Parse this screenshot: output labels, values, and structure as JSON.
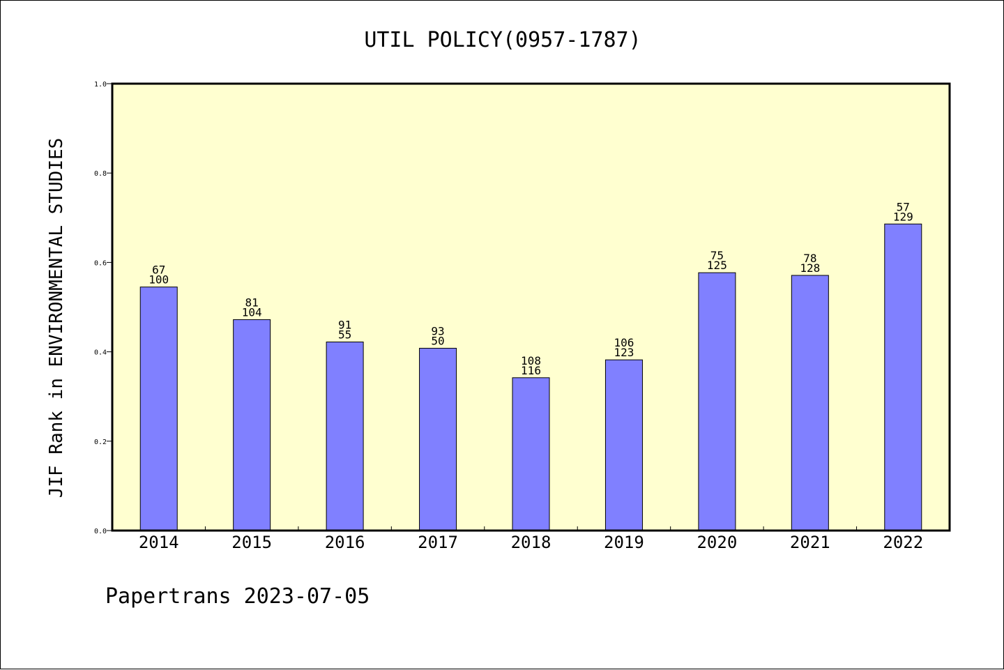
{
  "chart_data": {
    "type": "bar",
    "title": "UTIL POLICY(0957-1787)",
    "ylabel": "JIF Rank in ENVIRONMENTAL STUDIES",
    "xlabel": "",
    "ylim": [
      0,
      1.0
    ],
    "yticks": [
      "0.0",
      "0.2",
      "0.4",
      "0.6",
      "0.8",
      "1.0"
    ],
    "categories": [
      "2014",
      "2015",
      "2016",
      "2017",
      "2018",
      "2019",
      "2020",
      "2021",
      "2022"
    ],
    "values": [
      0.545,
      0.472,
      0.422,
      0.408,
      0.342,
      0.382,
      0.577,
      0.571,
      0.686
    ],
    "labels_top": [
      "67",
      "81",
      "91",
      "93",
      "108",
      "106",
      "75",
      "78",
      "57"
    ],
    "labels_bottom": [
      "100",
      "104",
      "55",
      "50",
      "116",
      "123",
      "125",
      "128",
      "129"
    ],
    "bar_color": "#8080ff",
    "plot_background": "#ffffd0",
    "grid": false
  },
  "footer": "Papertrans 2023-07-05"
}
